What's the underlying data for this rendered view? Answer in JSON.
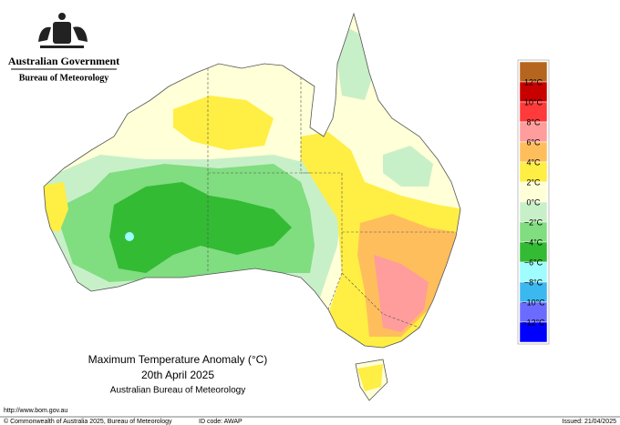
{
  "header": {
    "government": "Australian Government",
    "agency": "Bureau of Meteorology"
  },
  "map": {
    "title": "Maximum Temperature Anomaly (°C)",
    "date": "20th April 2025",
    "source": "Australian Bureau of Meteorology"
  },
  "legend": {
    "labels": [
      "12°C",
      "10°C",
      "8°C",
      "6°C",
      "4°C",
      "2°C",
      "0°C",
      "−2°C",
      "−4°C",
      "−6°C",
      "−8°C",
      "−10°C",
      "−12°C"
    ],
    "colors": [
      "#b5651d",
      "#c80000",
      "#ff3a3a",
      "#ff9c9c",
      "#ffbe5c",
      "#ffee44",
      "#ffffd8",
      "#c8f0c8",
      "#80dd80",
      "#33bb33",
      "#9ffcff",
      "#3cb8f0",
      "#6b6bff",
      "#0000ff"
    ]
  },
  "footer": {
    "url": "http://www.bom.gov.au",
    "copyright": "© Commonwealth of Australia 2025, Bureau of Meteorology",
    "id_code": "ID code: AWAP",
    "issued": "Issued: 21/04/2025"
  }
}
